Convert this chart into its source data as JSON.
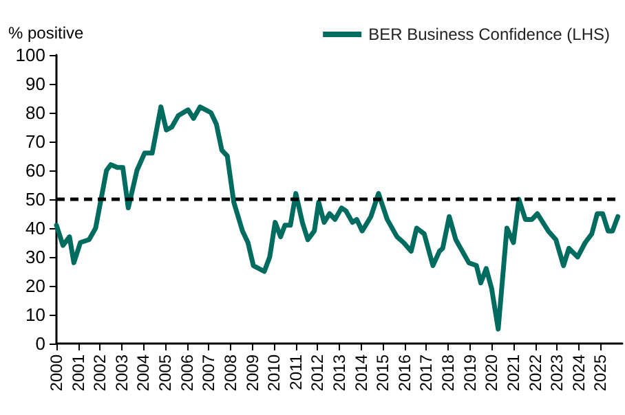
{
  "chart_data": {
    "type": "line",
    "ylabel": "% positive",
    "legend": "top right",
    "grid": false,
    "marker": "none",
    "line_style": "solid",
    "xlim": [
      2000,
      2026
    ],
    "xticks": [
      2000,
      2001,
      2002,
      2003,
      2004,
      2005,
      2006,
      2007,
      2008,
      2009,
      2010,
      2011,
      2012,
      2013,
      2014,
      2015,
      2016,
      2017,
      2018,
      2019,
      2020,
      2021,
      2022,
      2023,
      2024,
      2025
    ],
    "ylim": [
      0,
      100
    ],
    "yticks": [
      0,
      10,
      20,
      30,
      40,
      50,
      60,
      70,
      80,
      90,
      100
    ],
    "ref_lines": [
      {
        "axis": "y",
        "value": 50,
        "color": "#000000",
        "line_style": "dashed"
      }
    ],
    "series": [
      {
        "name": "BER Business Confidence (LHS)",
        "color": "#006b5f",
        "x": [
          2000.0,
          2000.3,
          2000.6,
          2000.8,
          2001.1,
          2001.5,
          2001.8,
          2002.3,
          2002.5,
          2002.8,
          2003.05,
          2003.3,
          2003.7,
          2004.05,
          2004.4,
          2004.8,
          2005.05,
          2005.3,
          2005.6,
          2006.05,
          2006.3,
          2006.6,
          2007.1,
          2007.35,
          2007.6,
          2007.85,
          2008.15,
          2008.55,
          2008.8,
          2009.05,
          2009.55,
          2009.8,
          2010.05,
          2010.3,
          2010.5,
          2010.75,
          2011.0,
          2011.3,
          2011.55,
          2011.85,
          2012.05,
          2012.3,
          2012.55,
          2012.8,
          2013.1,
          2013.3,
          2013.6,
          2013.8,
          2014.05,
          2014.45,
          2014.8,
          2015.2,
          2015.65,
          2015.95,
          2016.3,
          2016.55,
          2016.9,
          2017.3,
          2017.6,
          2017.75,
          2018.05,
          2018.35,
          2018.65,
          2018.95,
          2019.3,
          2019.5,
          2019.75,
          2020.0,
          2020.3,
          2020.7,
          2021.0,
          2021.25,
          2021.55,
          2021.85,
          2022.1,
          2022.6,
          2022.95,
          2023.3,
          2023.55,
          2023.95,
          2024.3,
          2024.6,
          2024.85,
          2025.1,
          2025.35,
          2025.55,
          2025.8
        ],
        "values": [
          41,
          34,
          37,
          28,
          35,
          36,
          40,
          60,
          62,
          61,
          61,
          47,
          60,
          66,
          66,
          82,
          74,
          75,
          79,
          81,
          78,
          82,
          80,
          76,
          67,
          65,
          49,
          39,
          35,
          27,
          25,
          30,
          42,
          37,
          41,
          41,
          52,
          42,
          36,
          39,
          49,
          42,
          45,
          43,
          47,
          46,
          42,
          43,
          39,
          44,
          52,
          43,
          37,
          35,
          32,
          40,
          38,
          27,
          32,
          33,
          44,
          36,
          32,
          28,
          27,
          21,
          26,
          19,
          5,
          40,
          35,
          50,
          43,
          43,
          45,
          39,
          36,
          27,
          33,
          30,
          35,
          38,
          45,
          45,
          39,
          39,
          44
        ]
      }
    ]
  }
}
